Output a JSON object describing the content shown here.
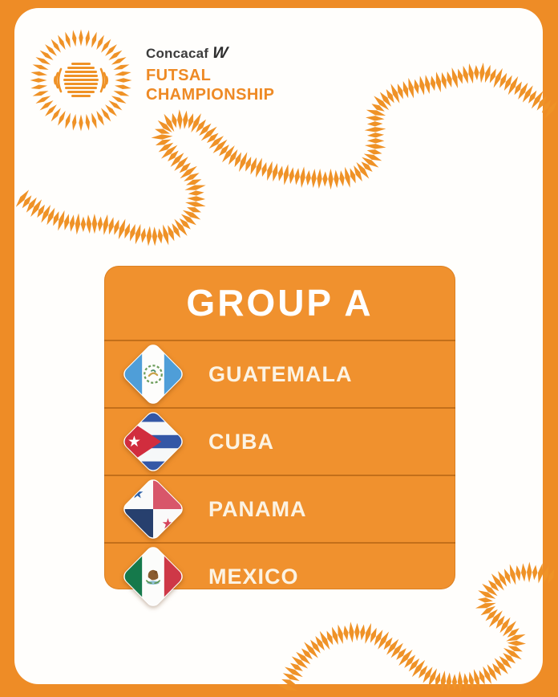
{
  "brand": {
    "org_name": "Concacaf",
    "w_mark": "W",
    "event_line1": "FUTSAL",
    "event_line2": "CHAMPIONSHIP"
  },
  "group_card": {
    "title": "GROUP A",
    "teams": [
      {
        "name": "GUATEMALA",
        "flag_icon": "guatemala-flag-diamond"
      },
      {
        "name": "CUBA",
        "flag_icon": "cuba-flag-diamond"
      },
      {
        "name": "PANAMA",
        "flag_icon": "panama-flag-diamond"
      },
      {
        "name": "MEXICO",
        "flag_icon": "mexico-flag-diamond"
      }
    ]
  },
  "icons": {
    "logo": "concacaf-sunburst-ball-logo",
    "decorations": [
      "squiggle-top",
      "squiggle-bottom"
    ]
  },
  "colors": {
    "frame_orange": "#EE8C26",
    "card_orange": "#F0912E",
    "decoration_orange": "#EF9227",
    "text_orange": "#EE8A25",
    "text_dark": "#3C3C3C",
    "card_text": "#FCF3E3"
  }
}
